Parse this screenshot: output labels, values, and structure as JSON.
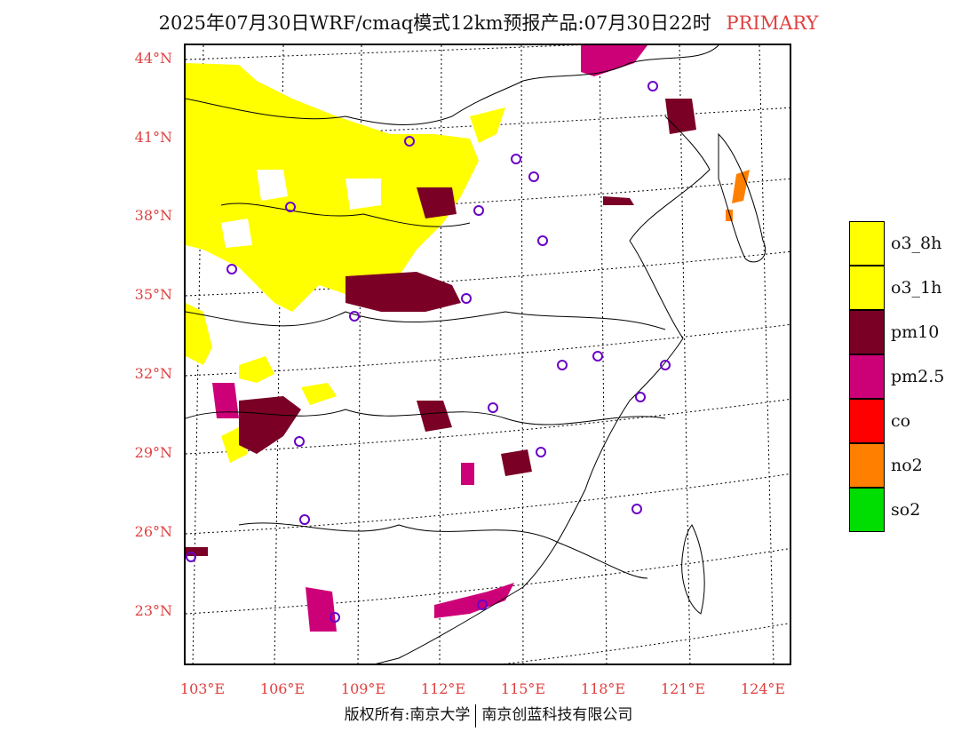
{
  "header": {
    "title": "2025年07月30日WRF/cmaq模式12km预报产品:07月30日22时",
    "mode": "PRIMARY"
  },
  "map": {
    "lat_labels": [
      "44°N",
      "41°N",
      "38°N",
      "35°N",
      "32°N",
      "29°N",
      "26°N",
      "23°N"
    ],
    "lon_labels": [
      "103°E",
      "106°E",
      "109°E",
      "112°E",
      "115°E",
      "118°E",
      "121°E",
      "124°E"
    ]
  },
  "legend": {
    "items": [
      {
        "label": "o3_8h",
        "color": "#ffff00"
      },
      {
        "label": "o3_1h",
        "color": "#ffff00"
      },
      {
        "label": "pm10",
        "color": "#7a0026"
      },
      {
        "label": "pm2.5",
        "color": "#cc0077"
      },
      {
        "label": "co",
        "color": "#ff0000"
      },
      {
        "label": "no2",
        "color": "#ff7f00"
      },
      {
        "label": "so2",
        "color": "#00dd00"
      }
    ]
  },
  "footer": {
    "left": "版权所有:南京大学",
    "right": "南京创蓝科技有限公司"
  }
}
